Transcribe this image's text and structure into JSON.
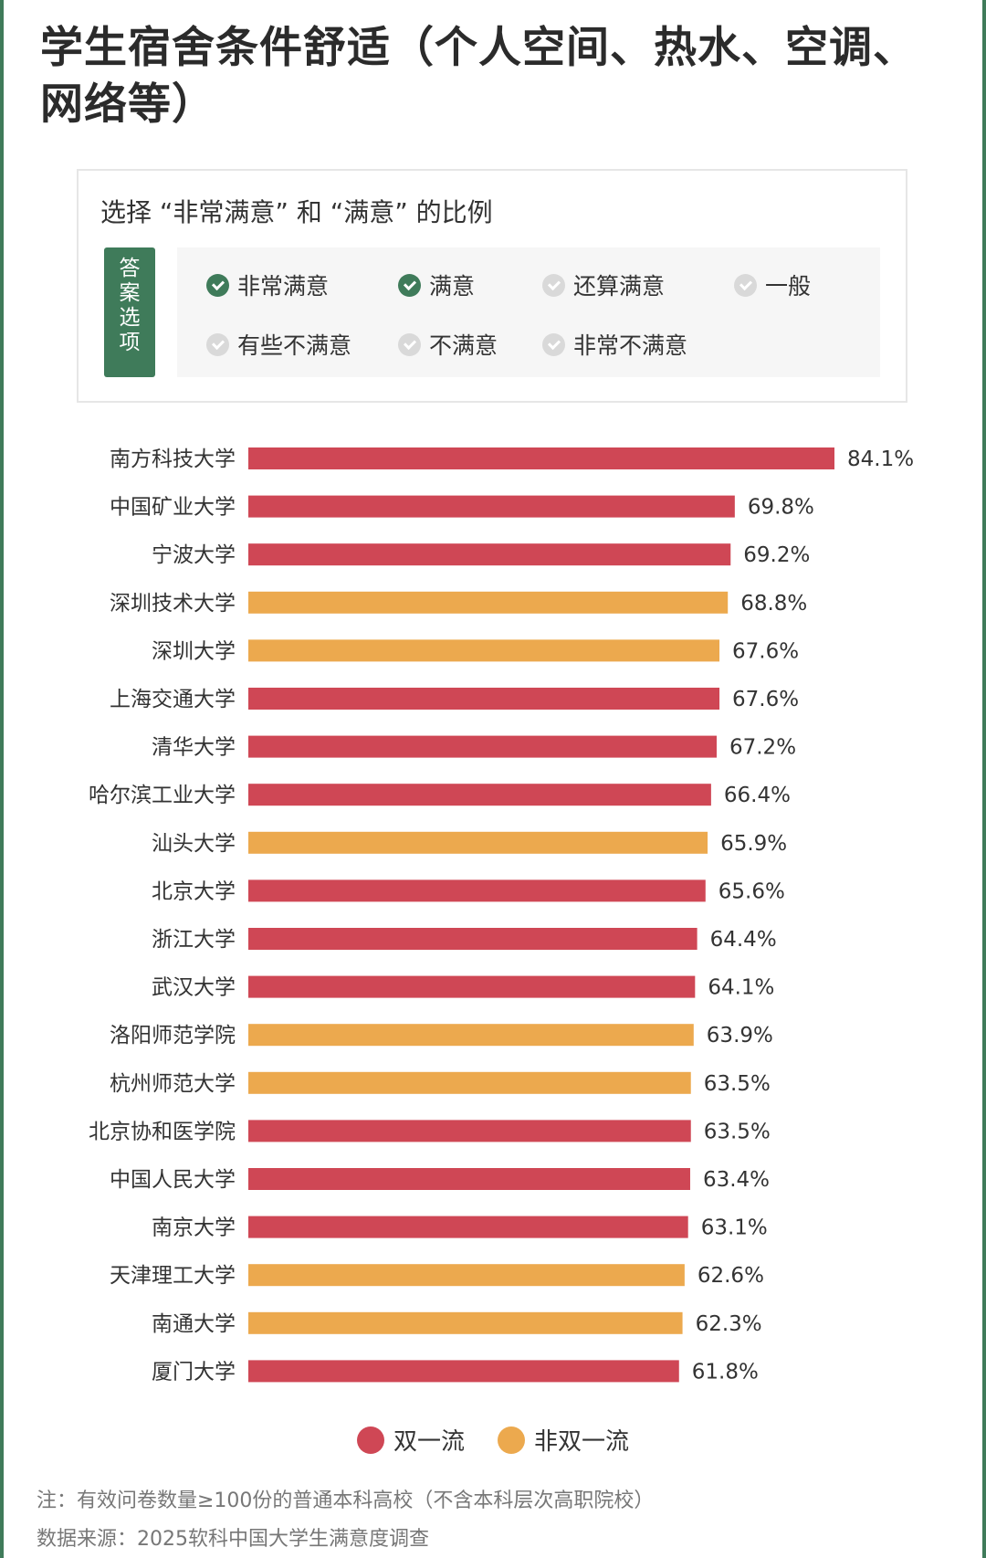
{
  "title": "学生宿舍条件舒适（个人空间、热水、空调、网络等）",
  "options_box": {
    "subtitle": "选择 “非常满意” 和 “满意” 的比例",
    "tag_chars": [
      "答",
      "案",
      "选",
      "项"
    ],
    "options": [
      {
        "label": "非常满意",
        "checked": true
      },
      {
        "label": "满意",
        "checked": true
      },
      {
        "label": "还算满意",
        "checked": false
      },
      {
        "label": "一般",
        "checked": false
      },
      {
        "label": "有些不满意",
        "checked": false
      },
      {
        "label": "不满意",
        "checked": false
      },
      {
        "label": "非常不满意",
        "checked": false
      }
    ]
  },
  "colors": {
    "double_first_class": "#cf4755",
    "non_double_first_class": "#eca94e",
    "accent_green": "#3f7b5a"
  },
  "chart_data": {
    "type": "bar",
    "orientation": "horizontal",
    "categories": [
      "南方科技大学",
      "中国矿业大学",
      "宁波大学",
      "深圳技术大学",
      "深圳大学",
      "上海交通大学",
      "清华大学",
      "哈尔滨工业大学",
      "汕头大学",
      "北京大学",
      "浙江大学",
      "武汉大学",
      "洛阳师范学院",
      "杭州师范大学",
      "北京协和医学院",
      "中国人民大学",
      "南京大学",
      "天津理工大学",
      "南通大学",
      "厦门大学"
    ],
    "values": [
      84.1,
      69.8,
      69.2,
      68.8,
      67.6,
      67.6,
      67.2,
      66.4,
      65.9,
      65.6,
      64.4,
      64.1,
      63.9,
      63.5,
      63.5,
      63.4,
      63.1,
      62.6,
      62.3,
      61.8
    ],
    "value_labels": [
      "84.1%",
      "69.8%",
      "69.2%",
      "68.8%",
      "67.6%",
      "67.6%",
      "67.2%",
      "66.4%",
      "65.9%",
      "65.6%",
      "64.4%",
      "64.1%",
      "63.9%",
      "63.5%",
      "63.5%",
      "63.4%",
      "63.1%",
      "62.6%",
      "62.3%",
      "61.8%"
    ],
    "groups": [
      "双一流",
      "双一流",
      "双一流",
      "非双一流",
      "非双一流",
      "双一流",
      "双一流",
      "双一流",
      "非双一流",
      "双一流",
      "双一流",
      "双一流",
      "非双一流",
      "非双一流",
      "双一流",
      "双一流",
      "双一流",
      "非双一流",
      "非双一流",
      "双一流"
    ],
    "unit": "%",
    "xlim": [
      0,
      84.1
    ],
    "grid": false,
    "legend": {
      "position": "bottom",
      "entries": [
        {
          "name": "双一流",
          "color": "#cf4755"
        },
        {
          "name": "非双一流",
          "color": "#eca94e"
        }
      ]
    }
  },
  "footer": {
    "note": "注：有效问卷数量≥100份的普通本科高校（不含本科层次高职院校）",
    "source": "数据来源：2025软科中国大学生满意度调查"
  }
}
